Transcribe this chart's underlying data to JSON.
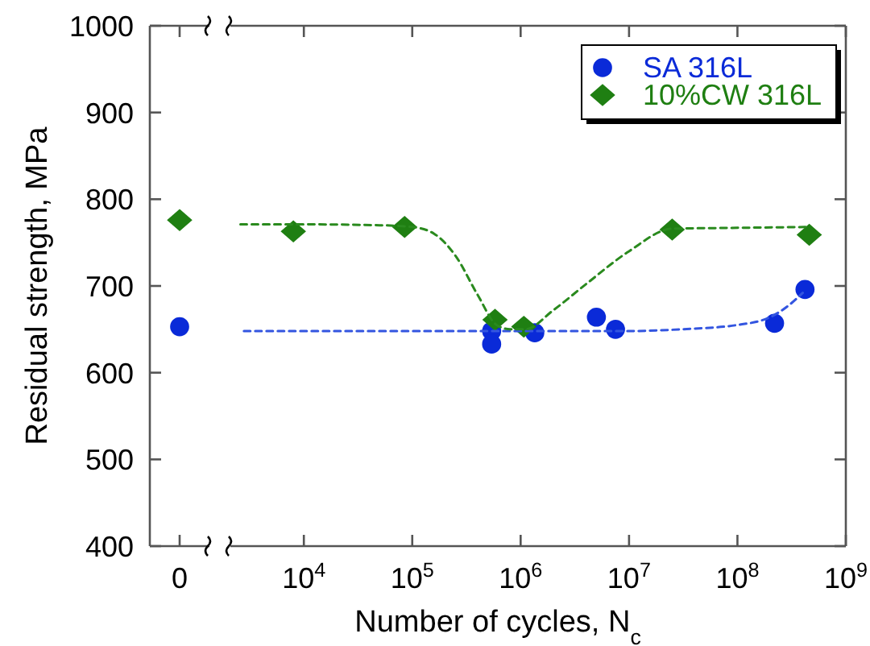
{
  "chart_data": [
    {
      "type": "scatter",
      "ylabel": "Residual strength, MPa",
      "categories": [
        "0"
      ],
      "ylim": [
        400,
        1000
      ],
      "yticks": [
        400,
        500,
        600,
        700,
        800,
        900,
        1000
      ],
      "tick_labels": true,
      "series": [
        {
          "color": "#0a2ad8",
          "marker": "circle",
          "values": [
            653
          ]
        },
        {
          "color": "#1f7f12",
          "marker": "diamond",
          "values": [
            776
          ]
        }
      ]
    },
    {
      "type": "scatter",
      "xlabel": "Number of cycles, N$_{c}$",
      "log": "x",
      "tick_labels": "x",
      "legend": "top right",
      "xlim": [
        2100,
        1000000000
      ],
      "xticks": [
        {
          "value": 10000,
          "label": "10$^{4}$"
        },
        {
          "value": 100000,
          "label": "10$^{5}$"
        },
        {
          "value": 1000000,
          "label": "10$^{6}$"
        },
        {
          "value": 10000000,
          "label": "10$^{7}$"
        },
        {
          "value": 100000000,
          "label": "10$^{8}$"
        },
        {
          "value": 1000000000,
          "label": "10$^{9}$"
        }
      ],
      "ylim": [
        400,
        1000
      ],
      "yticks": [
        400,
        500,
        600,
        700,
        800,
        900,
        1000
      ],
      "series": [
        {
          "name": "SA 316L",
          "color": "#0a2ad8",
          "marker": "circle",
          "x": [
            540000,
            540000,
            1350000,
            5000000,
            7500000,
            220000000,
            420000000
          ],
          "values": [
            648,
            633,
            646,
            664,
            650,
            657,
            696
          ]
        },
        {
          "name": "10%CW 316L",
          "color": "#1f7f12",
          "marker": "diamond",
          "x": [
            8000,
            85000,
            580000,
            1070000,
            25000000,
            460000000
          ],
          "values": [
            763,
            768,
            661,
            653,
            765,
            759
          ]
        },
        {
          "color": "#3355e0",
          "type": "line",
          "line_style": "dashed",
          "marker": "none",
          "x": [
            2800,
            100000,
            1000000,
            10000000,
            30000000,
            100000000,
            200000000,
            300000000,
            400000000
          ],
          "values": [
            648,
            648,
            648,
            648,
            650,
            655,
            664,
            678,
            692
          ]
        },
        {
          "color": "#2a8a1e",
          "type": "line",
          "line_style": "dashed",
          "marker": "none",
          "x": [
            2600,
            10000,
            50000,
            100000,
            160000,
            250000,
            400000,
            600000,
            800000,
            1100000,
            2000000,
            4000000,
            10000000,
            25000000,
            100000000,
            450000000
          ],
          "values": [
            771,
            771,
            770,
            768,
            760,
            735,
            690,
            655,
            650,
            650,
            672,
            702,
            740,
            766,
            767,
            768
          ]
        }
      ]
    }
  ]
}
